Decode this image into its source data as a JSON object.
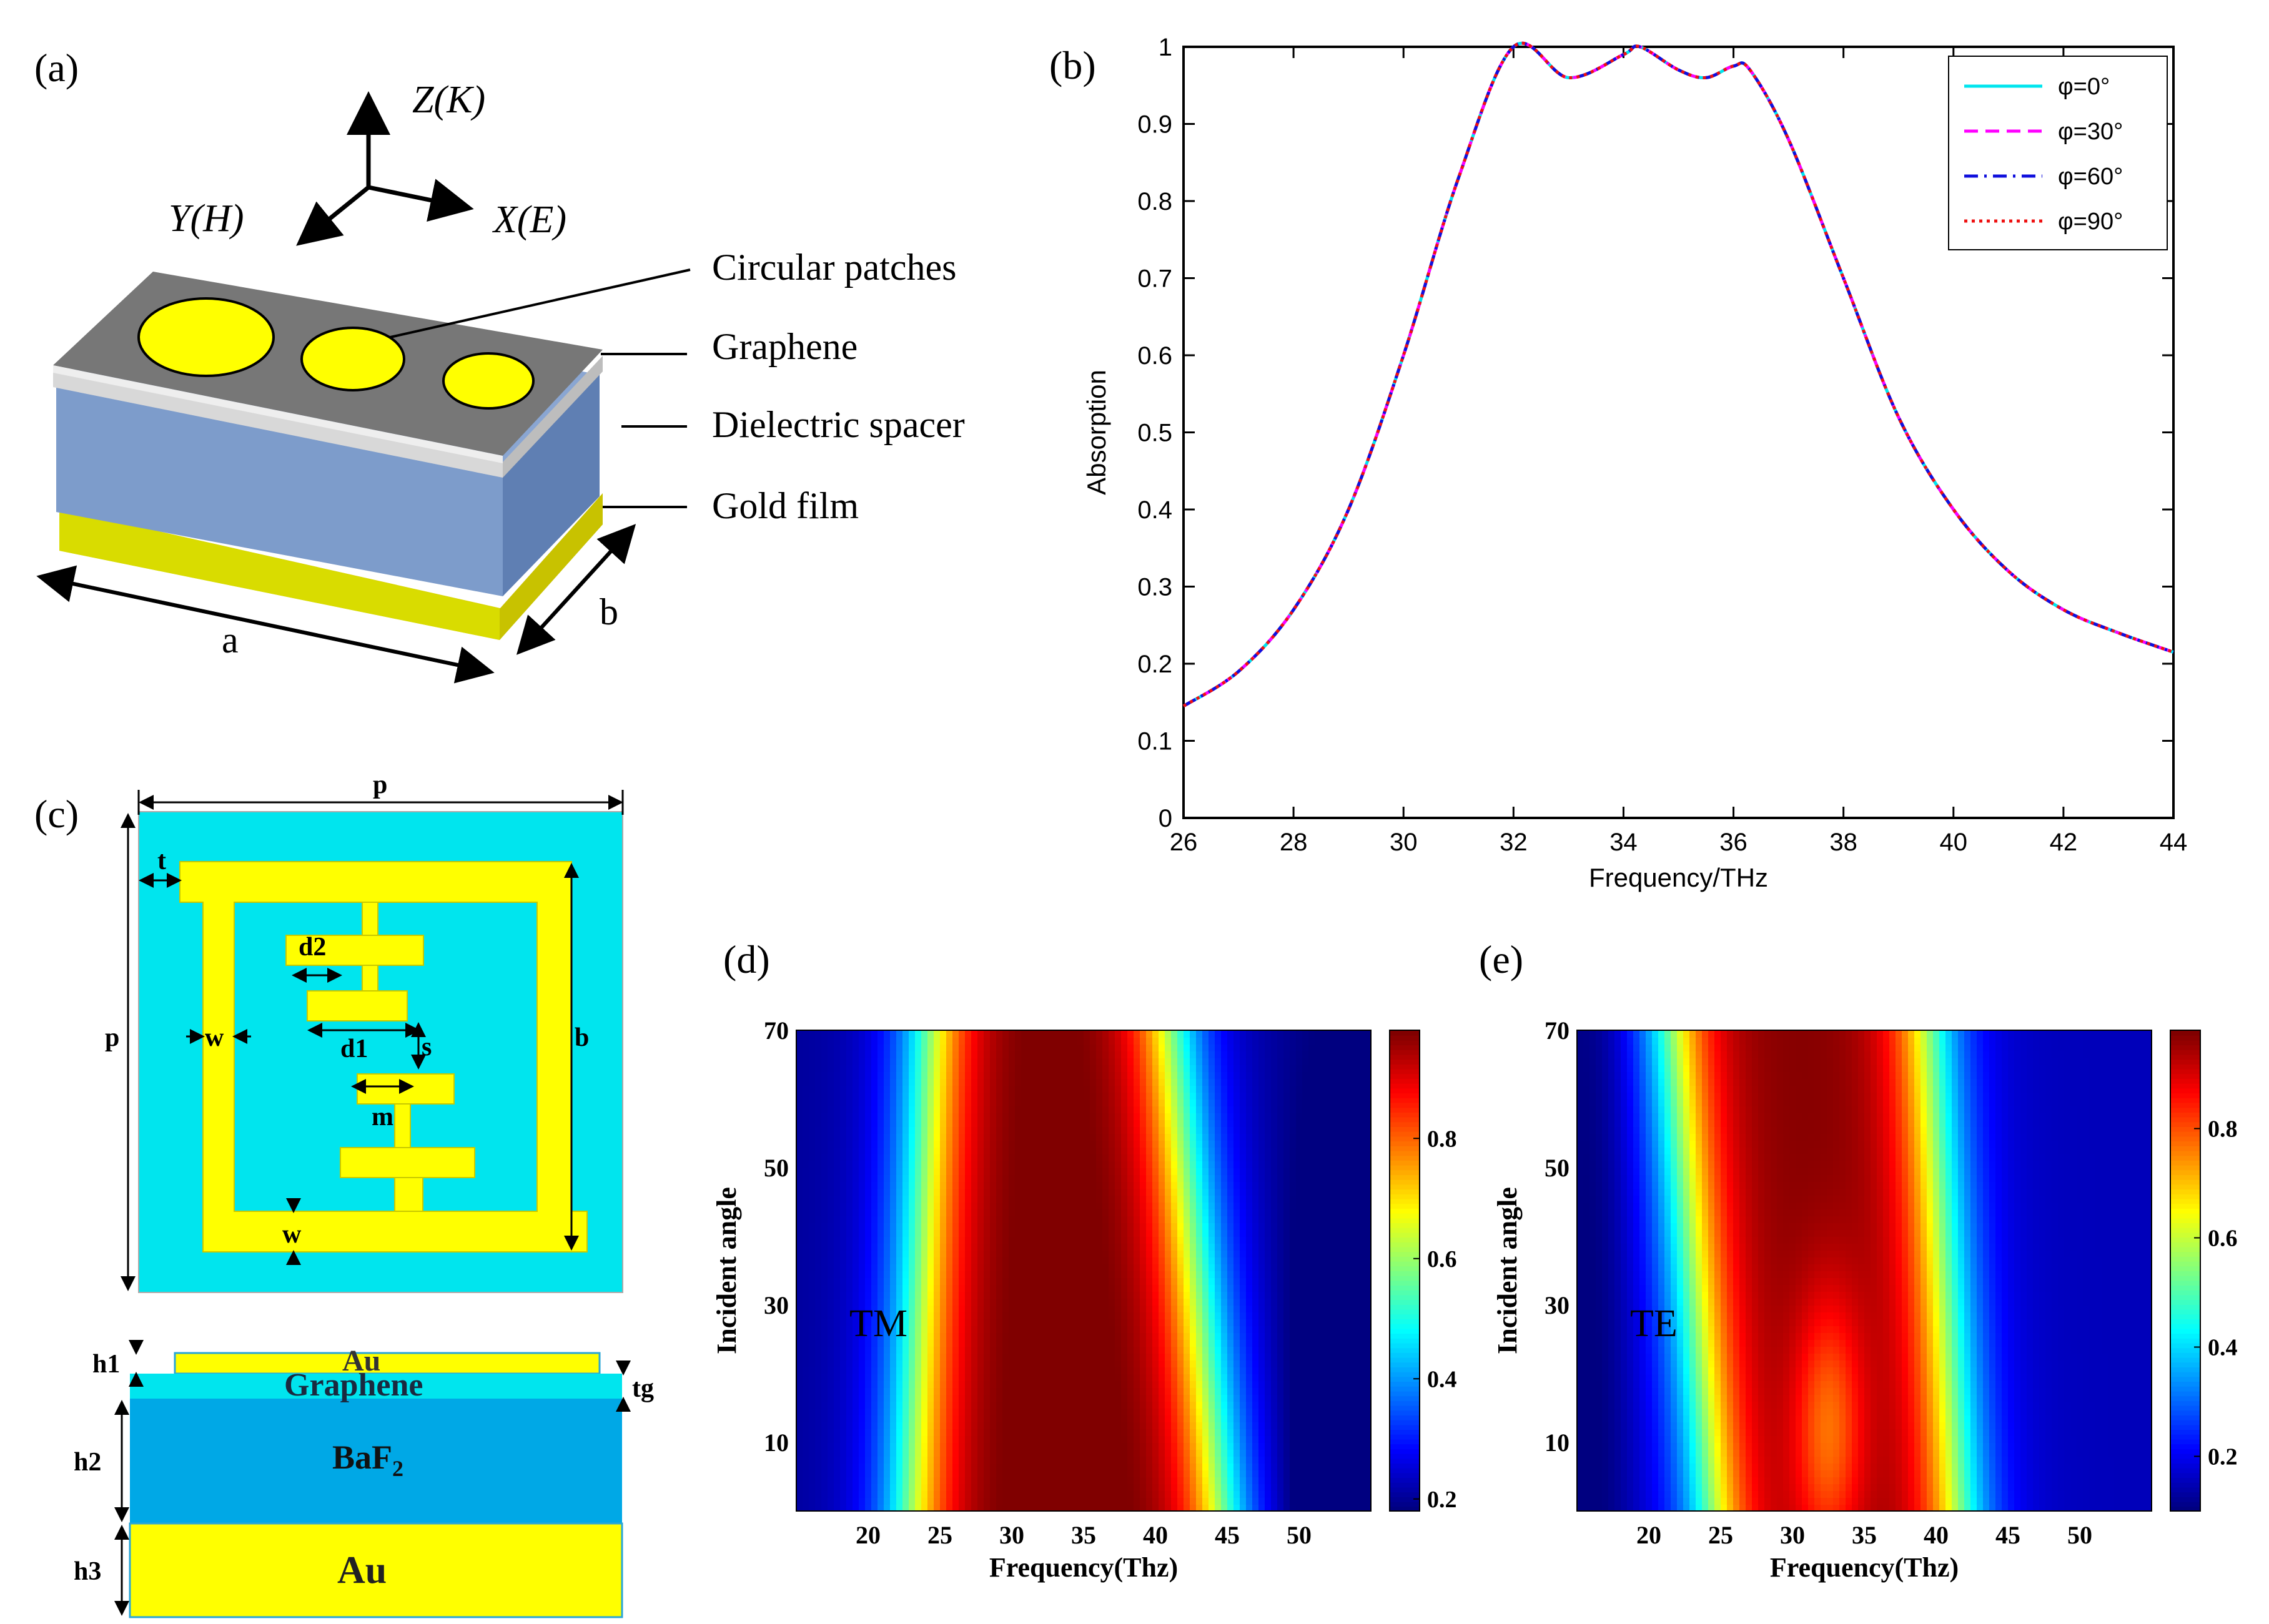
{
  "panels": {
    "a": {
      "label": "(a)",
      "axes": {
        "z": "Z(K)",
        "y": "Y(H)",
        "x": "X(E)"
      },
      "layers": [
        "Circular patches",
        "Graphene",
        "Dielectric spacer",
        "Gold film"
      ],
      "dims": {
        "a": "a",
        "b": "b"
      }
    },
    "b": {
      "label": "(b)"
    },
    "c": {
      "label": "(c)",
      "top_labels": {
        "p_top": "p",
        "p_left": "p",
        "t": "t",
        "w1": "w",
        "w2": "w",
        "d1": "d1",
        "d2": "d2",
        "s": "s",
        "m": "m",
        "b": "b"
      },
      "side_labels": {
        "h1": "h1",
        "h2": "h2",
        "h3": "h3",
        "tg": "tg",
        "au_top": "Au",
        "graphene": "Graphene",
        "baf2": "BaF",
        "baf2_sub": "2",
        "au_bottom": "Au"
      }
    },
    "d": {
      "label": "(d)",
      "mode": "TM"
    },
    "e": {
      "label": "(e)",
      "mode": "TE"
    }
  },
  "chart_data": [
    {
      "type": "line",
      "xlabel": "Frequency/THz",
      "ylabel": "Absorption",
      "xlim": [
        26,
        44
      ],
      "ylim": [
        0,
        1
      ],
      "xticks": [
        "26",
        "28",
        "30",
        "32",
        "34",
        "36",
        "38",
        "40",
        "42",
        "44"
      ],
      "yticks": [
        "0",
        "0.1",
        "0.2",
        "0.3",
        "0.4",
        "0.5",
        "0.6",
        "0.7",
        "0.8",
        "0.9",
        "1"
      ],
      "legend_position": "top-right",
      "x": [
        26,
        27,
        28,
        29,
        30,
        31,
        32,
        33,
        34,
        34.3,
        35,
        35.5,
        36,
        36.3,
        37,
        38,
        39,
        40,
        41,
        42,
        43,
        44
      ],
      "series": [
        {
          "name": "φ=0°",
          "color": "#00e5ee",
          "dash": "solid",
          "values": [
            0.145,
            0.19,
            0.27,
            0.4,
            0.6,
            0.83,
            1.0,
            0.96,
            0.99,
            1.0,
            0.97,
            0.96,
            0.975,
            0.97,
            0.88,
            0.7,
            0.52,
            0.4,
            0.32,
            0.27,
            0.24,
            0.215
          ]
        },
        {
          "name": "φ=30°",
          "color": "#ff00ff",
          "dash": "dashed",
          "values": [
            0.145,
            0.19,
            0.27,
            0.4,
            0.6,
            0.83,
            1.0,
            0.96,
            0.99,
            1.0,
            0.97,
            0.96,
            0.975,
            0.97,
            0.88,
            0.7,
            0.52,
            0.4,
            0.32,
            0.27,
            0.24,
            0.215
          ]
        },
        {
          "name": "φ=60°",
          "color": "#1010dd",
          "dash": "dashdot",
          "values": [
            0.145,
            0.19,
            0.27,
            0.4,
            0.6,
            0.83,
            1.0,
            0.96,
            0.99,
            1.0,
            0.97,
            0.96,
            0.975,
            0.97,
            0.88,
            0.7,
            0.52,
            0.4,
            0.32,
            0.27,
            0.24,
            0.215
          ]
        },
        {
          "name": "φ=90°",
          "color": "#ee1111",
          "dash": "dotted",
          "values": [
            0.145,
            0.19,
            0.27,
            0.4,
            0.6,
            0.83,
            1.0,
            0.96,
            0.99,
            1.0,
            0.97,
            0.96,
            0.975,
            0.97,
            0.88,
            0.7,
            0.52,
            0.4,
            0.32,
            0.27,
            0.24,
            0.215
          ]
        }
      ]
    },
    {
      "type": "heatmap",
      "xlabel": "Frequency(Thz)",
      "ylabel": "Incident angle",
      "xlim": [
        15,
        55
      ],
      "ylim": [
        0,
        70
      ],
      "xticks": [
        "20",
        "25",
        "30",
        "35",
        "40",
        "45",
        "50"
      ],
      "yticks": [
        "10",
        "30",
        "50",
        "70"
      ],
      "colorbar_ticks": [
        "0.2",
        "0.4",
        "0.6",
        "0.8"
      ],
      "colorbar_range": [
        0.18,
        0.98
      ],
      "annotation": "TM"
    },
    {
      "type": "heatmap",
      "xlabel": "Frequency(Thz)",
      "ylabel": "Incident angle",
      "xlim": [
        15,
        55
      ],
      "ylim": [
        0,
        70
      ],
      "xticks": [
        "20",
        "25",
        "30",
        "35",
        "40",
        "45",
        "50"
      ],
      "yticks": [
        "10",
        "30",
        "50",
        "70"
      ],
      "colorbar_ticks": [
        "0.2",
        "0.4",
        "0.6",
        "0.8"
      ],
      "colorbar_range": [
        0.1,
        0.98
      ],
      "annotation": "TE"
    }
  ]
}
